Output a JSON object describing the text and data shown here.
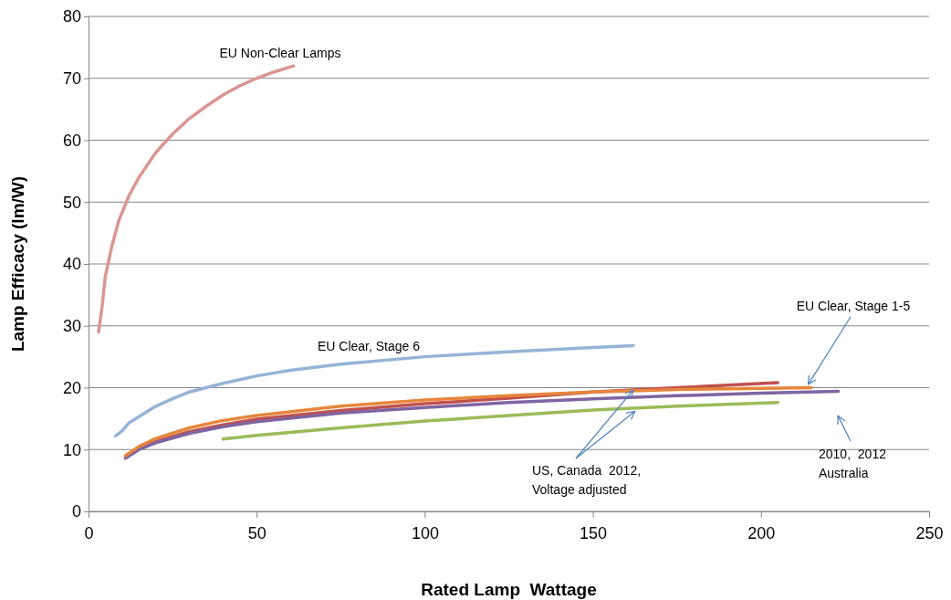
{
  "chart_data": {
    "type": "line",
    "xlabel": "Rated Lamp  Wattage",
    "ylabel": "Lamp Efficacy (lm/W)",
    "xlim": [
      0,
      250
    ],
    "xticks": [
      0,
      50,
      100,
      150,
      200,
      250
    ],
    "ylim": [
      0,
      80
    ],
    "yticks": [
      0,
      10,
      20,
      30,
      40,
      50,
      60,
      70,
      80
    ],
    "grid": "y",
    "marker": "none",
    "line_style": "solid",
    "series": [
      {
        "color": "#d99694",
        "x": [
          3,
          4,
          5,
          7,
          9,
          12,
          15,
          20,
          25,
          30,
          35,
          40,
          45,
          50,
          55,
          61
        ],
        "values": [
          29,
          33,
          38,
          43,
          47,
          51,
          54,
          58,
          61,
          63.5,
          65.5,
          67.3,
          68.8,
          70,
          71,
          72
        ]
      },
      {
        "color": "#95b3d7",
        "x": [
          8,
          10,
          12,
          15,
          20,
          25,
          30,
          40,
          50,
          60,
          75,
          100,
          125,
          150,
          162
        ],
        "values": [
          12.2,
          13,
          14.3,
          15.3,
          17,
          18.2,
          19.3,
          20.7,
          21.9,
          22.8,
          23.8,
          25,
          25.8,
          26.5,
          26.8
        ]
      },
      {
        "color": "#c0504d",
        "x": [
          11,
          15,
          20,
          30,
          40,
          50,
          75,
          100,
          125,
          150,
          175,
          205
        ],
        "values": [
          8.8,
          10.2,
          11.3,
          12.9,
          14,
          14.9,
          16.3,
          17.4,
          18.3,
          19.3,
          20,
          20.8
        ]
      },
      {
        "color": "#8064a2",
        "x": [
          11,
          15,
          20,
          30,
          40,
          50,
          75,
          100,
          125,
          150,
          175,
          200,
          223
        ],
        "values": [
          8.6,
          10,
          11.1,
          12.6,
          13.7,
          14.5,
          15.9,
          16.8,
          17.6,
          18.2,
          18.7,
          19.1,
          19.4
        ]
      },
      {
        "color": "#e6863b",
        "x": [
          11,
          15,
          20,
          30,
          40,
          50,
          75,
          100,
          125,
          150,
          175,
          200,
          215
        ],
        "values": [
          9,
          10.5,
          11.8,
          13.5,
          14.7,
          15.5,
          17,
          18,
          18.7,
          19.3,
          19.7,
          19.9,
          20
        ]
      },
      {
        "color": "#9bbb59",
        "x": [
          40,
          50,
          75,
          100,
          125,
          150,
          175,
          205
        ],
        "values": [
          11.7,
          12.3,
          13.5,
          14.6,
          15.5,
          16.4,
          17,
          17.6
        ]
      }
    ],
    "annotations": [
      "EU Non-Clear Lamps",
      "EU Clear, Stage 6",
      {
        "text": "EU Clear, Stage 1-5",
        "x": 214,
        "y": 20.5
      },
      {
        "text": "US, Canada  2012,\nVoltage adjusted",
        "x": 162,
        "y": 19.6
      },
      "2010,  2012\nAustralia"
    ]
  }
}
